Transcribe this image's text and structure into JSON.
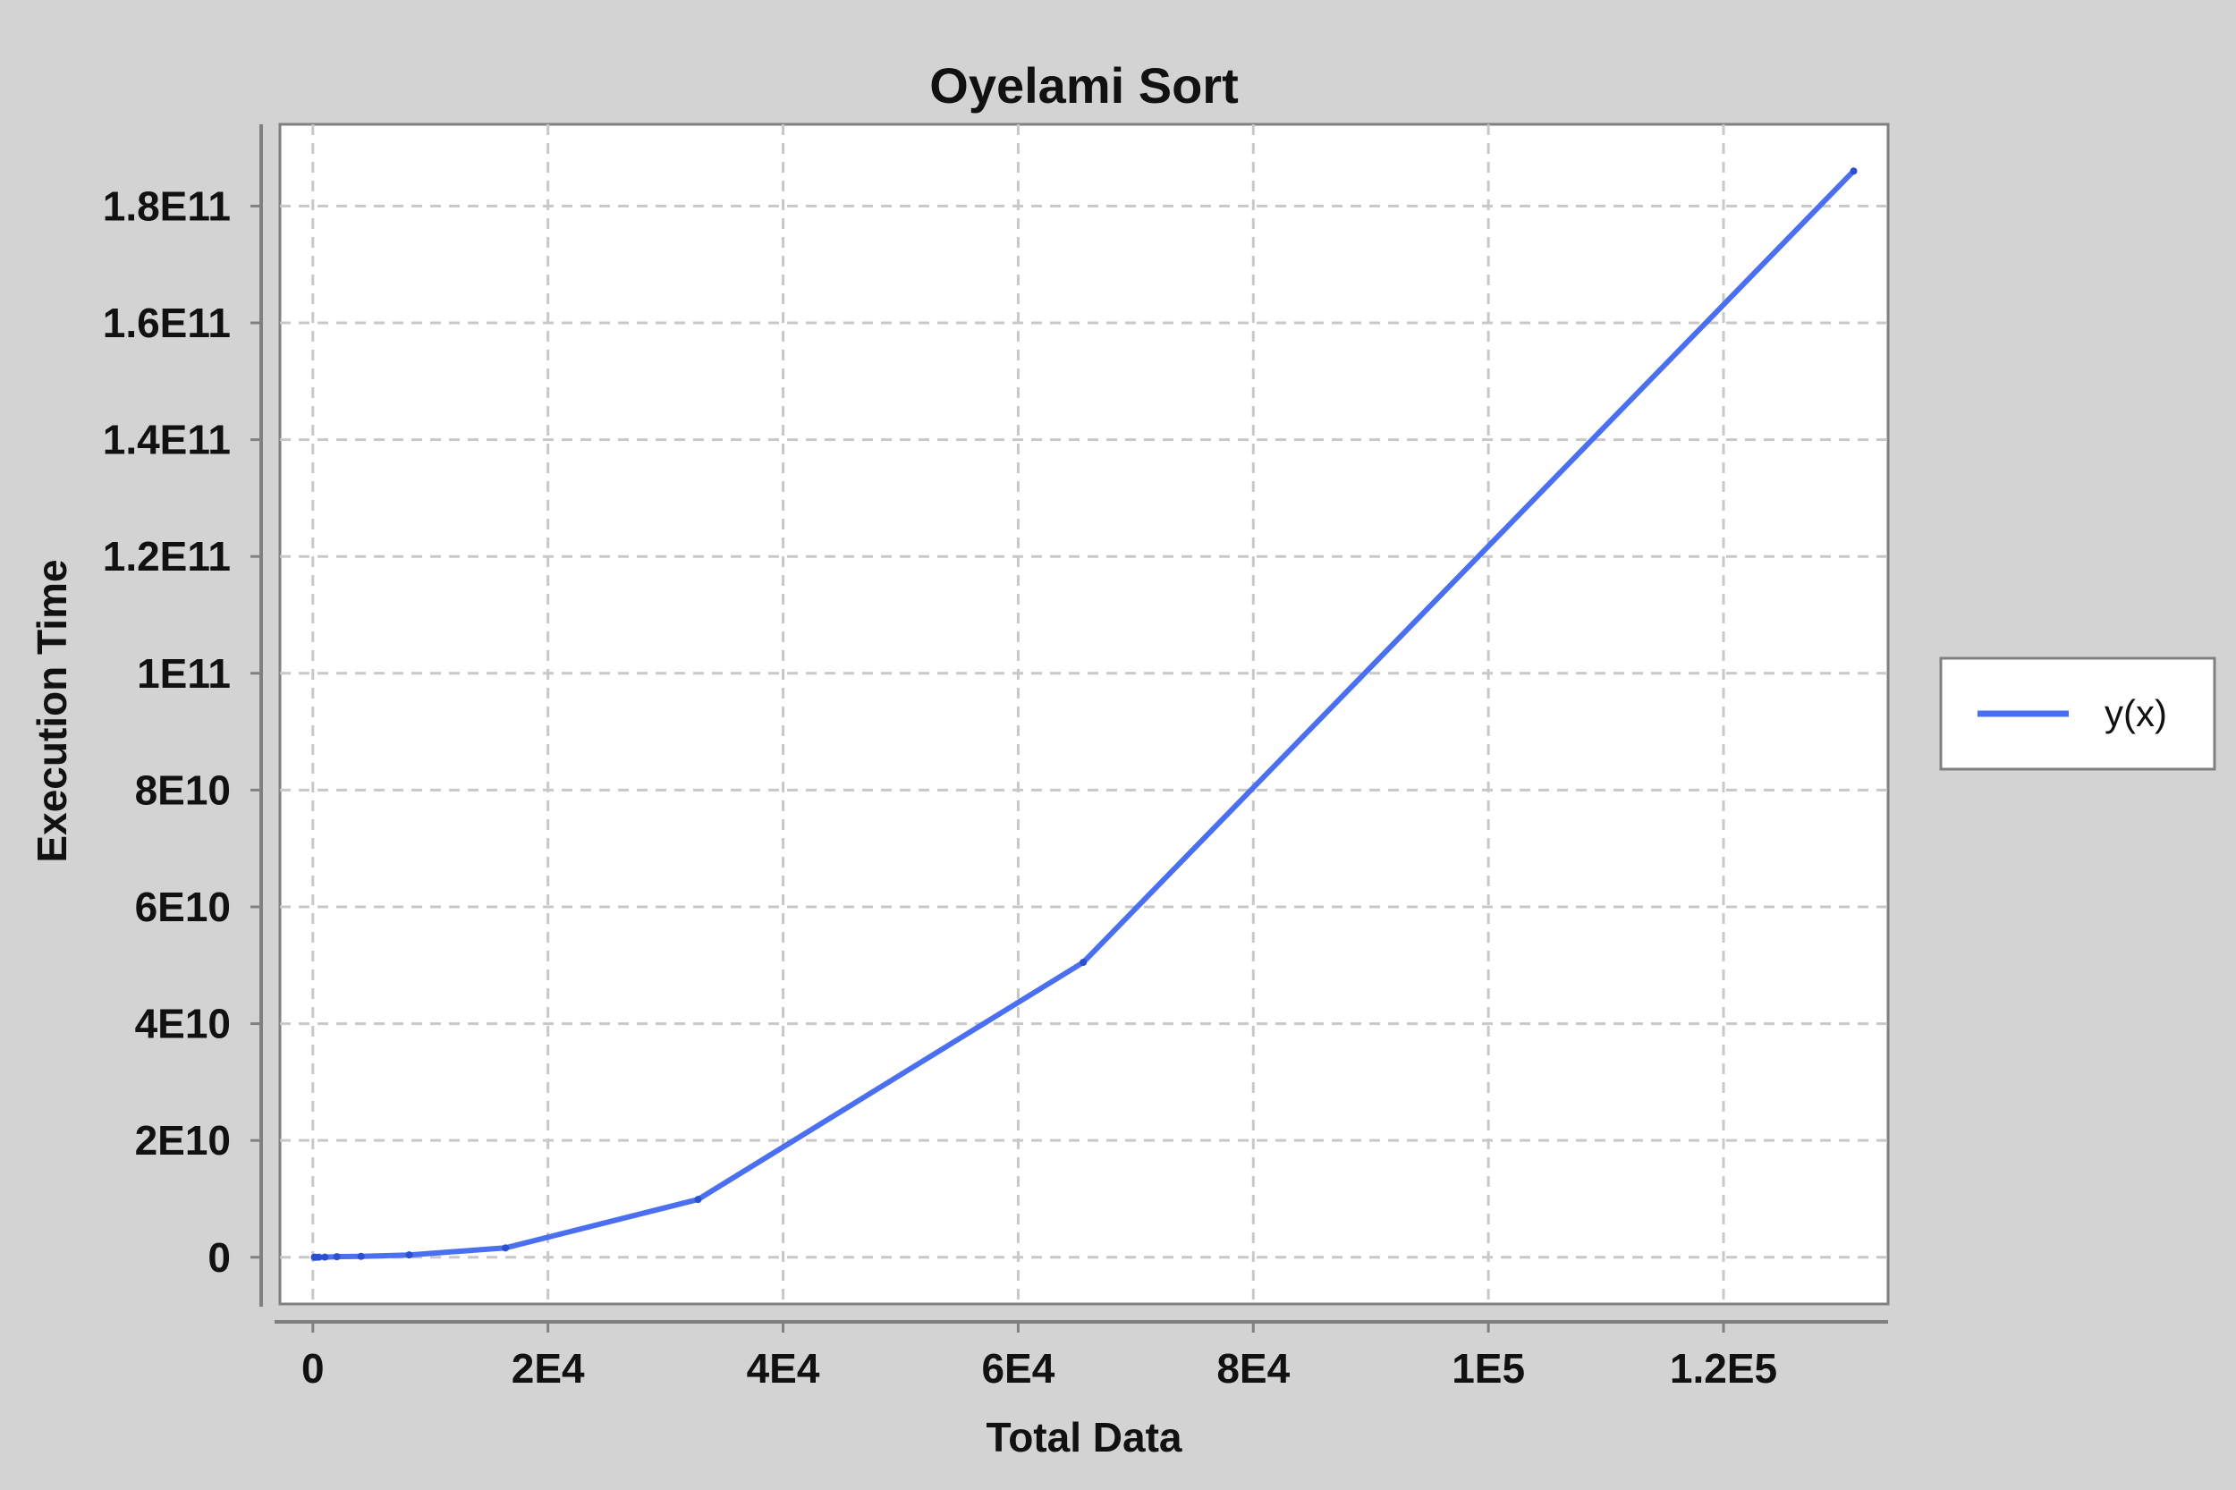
{
  "chart_data": {
    "type": "line",
    "title": "Oyelami Sort",
    "xlabel": "Total Data",
    "ylabel": "Execution Time",
    "xlim": [
      -2800,
      134000
    ],
    "ylim": [
      -8000000000,
      194000000000
    ],
    "x_ticks": [
      {
        "value": 0,
        "label": "0"
      },
      {
        "value": 20000,
        "label": "2E4"
      },
      {
        "value": 40000,
        "label": "4E4"
      },
      {
        "value": 60000,
        "label": "6E4"
      },
      {
        "value": 80000,
        "label": "8E4"
      },
      {
        "value": 100000,
        "label": "1E5"
      },
      {
        "value": 120000,
        "label": "1.2E5"
      }
    ],
    "y_ticks": [
      {
        "value": 0,
        "label": "0"
      },
      {
        "value": 20000000000,
        "label": "2E10"
      },
      {
        "value": 40000000000,
        "label": "4E10"
      },
      {
        "value": 60000000000,
        "label": "6E10"
      },
      {
        "value": 80000000000,
        "label": "8E10"
      },
      {
        "value": 100000000000,
        "label": "1E11"
      },
      {
        "value": 120000000000,
        "label": "1.2E11"
      },
      {
        "value": 140000000000,
        "label": "1.4E11"
      },
      {
        "value": 160000000000,
        "label": "1.6E11"
      },
      {
        "value": 180000000000,
        "label": "1.8E11"
      }
    ],
    "grid": true,
    "legend_position": "right",
    "series": [
      {
        "name": "y(x)",
        "color": "#4a6ff0",
        "x": [
          128,
          256,
          512,
          1024,
          2048,
          4096,
          8192,
          16384,
          32768,
          65536,
          131072
        ],
        "y": [
          1000000,
          2000000,
          8000000,
          30000000,
          100000000,
          150000000,
          400000000,
          1600000000,
          9900000000,
          50500000000,
          186000000000
        ]
      }
    ]
  }
}
